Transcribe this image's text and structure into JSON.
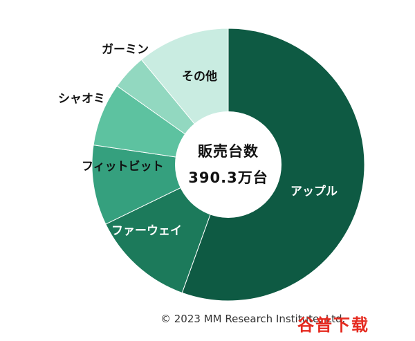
{
  "chart_data": {
    "type": "pie",
    "donut": true,
    "center_title": "販売台数",
    "center_value": "390.3万台",
    "slices": [
      {
        "label": "アップル",
        "value": 55.5,
        "color": "#0e5a43"
      },
      {
        "label": "ファーウェイ",
        "value": 12.3,
        "color": "#1c7a5b"
      },
      {
        "label": "フィットビット",
        "value": 9.5,
        "color": "#35a07e"
      },
      {
        "label": "シャオミ",
        "value": 7.5,
        "color": "#5dc2a0"
      },
      {
        "label": "ガーミン",
        "value": 4.2,
        "color": "#92d8c0"
      },
      {
        "label": "その他",
        "value": 11.0,
        "color": "#c9ece1"
      }
    ]
  },
  "copyright": "© 2023 MM Research Institute, Ltd.",
  "watermark": "谷普下载"
}
